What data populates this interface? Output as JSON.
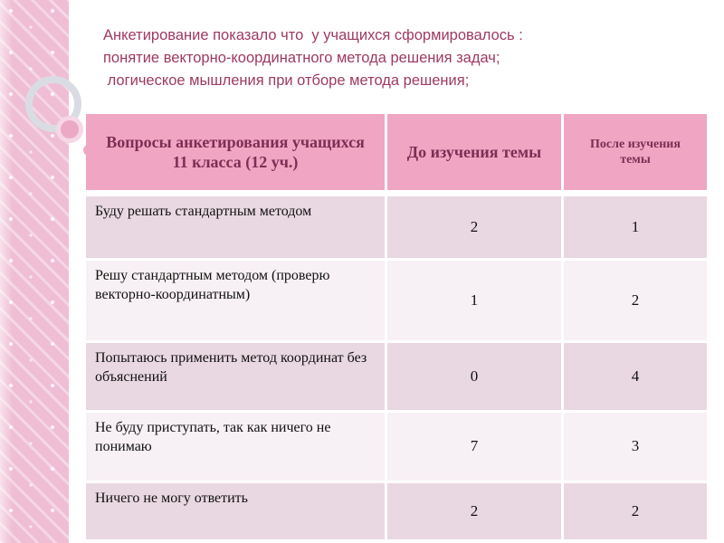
{
  "slide_title": {
    "lines": [
      "Анкетирование показало что  у учащихся сформировалось :",
      "понятие векторно-координатного метода решения задач;",
      " логическое мышления при отборе метода решения;"
    ]
  },
  "survey_table": {
    "column_headers": [
      "Вопросы анкетирования учащихся 11 класса (12 уч.)",
      "До изучения темы",
      "После изучения темы"
    ],
    "rows": [
      {
        "question": "Буду решать  стандартным методом",
        "before": "2",
        "after": "1"
      },
      {
        "question": "Решу стандартным методом (проверю  векторно-координатным)",
        "before": "1",
        "after": "2"
      },
      {
        "question": "Попытаюсь применить метод координат без  объяснений",
        "before": "0",
        "after": "4"
      },
      {
        "question": "Не буду приступать, так как ничего не понимаю",
        "before": "7",
        "after": "3"
      },
      {
        "question": "Ничего не могу ответить",
        "before": "2",
        "after": "2"
      }
    ]
  },
  "colors": {
    "background_pink": "#EFBED4",
    "title_text": "#9E3A60",
    "table_header_bg": "#F0A5C2",
    "table_header_text": "#7E2E55",
    "row_shade_dark": "#E9D8E1",
    "row_shade_light": "#F7F0F4"
  }
}
